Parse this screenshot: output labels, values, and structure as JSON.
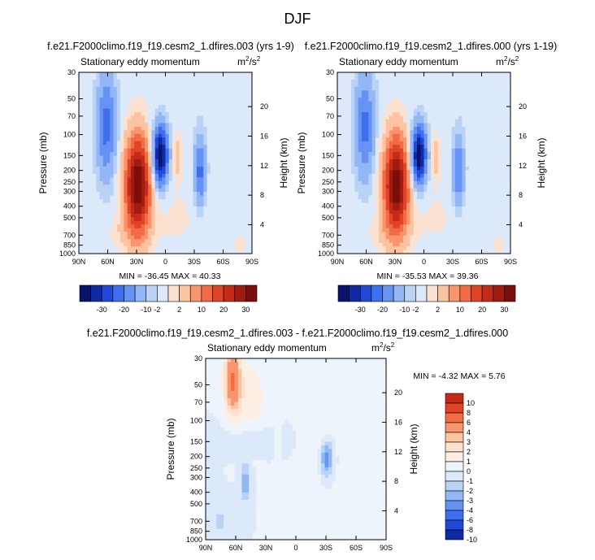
{
  "figure": {
    "title": "DJF"
  },
  "chart_data": [
    {
      "type": "heatmap",
      "id": "p1",
      "title": "f.e21.F2000climo.f19_f19.cesm2_1.dfires.003 (yrs 1-9)",
      "subtitle": "Stationary eddy momentum",
      "units": "m²/s²",
      "units_base": "m",
      "units_sup1": "2",
      "units_sep": "/s",
      "units_sup2": "2",
      "ylabel": "Pressure (mb)",
      "y2label": "Height (km)",
      "x_ticks": [
        "90N",
        "60N",
        "30N",
        "0",
        "30S",
        "60S",
        "90S"
      ],
      "x_values": [
        90,
        60,
        30,
        0,
        -30,
        -60,
        -90
      ],
      "y_ticks": [
        "30",
        "50",
        "70",
        "100",
        "150",
        "200",
        "250",
        "300",
        "400",
        "500",
        "700",
        "850",
        "1000"
      ],
      "y2_ticks": [
        "20",
        "16",
        "12",
        "8",
        "4"
      ],
      "min_max": "MIN = -36.45   MAX =  40.33",
      "colorbar_labels": [
        "-30",
        "-20",
        "-10",
        "-2",
        "2",
        "10",
        "20",
        "30"
      ],
      "levels": [
        -35,
        -30,
        -25,
        -20,
        -15,
        -10,
        -5,
        -2,
        2,
        5,
        10,
        15,
        20,
        25,
        30,
        35
      ]
    },
    {
      "type": "heatmap",
      "id": "p2",
      "title": "f.e21.F2000climo.f19_f19.cesm2_1.dfires.000 (yrs 1-19)",
      "subtitle": "Stationary eddy momentum",
      "units": "m²/s²",
      "units_base": "m",
      "units_sup1": "2",
      "units_sep": "/s",
      "units_sup2": "2",
      "ylabel": "Pressure (mb)",
      "y2label": "Height (km)",
      "x_ticks": [
        "90N",
        "60N",
        "30N",
        "0",
        "30S",
        "60S",
        "90S"
      ],
      "x_values": [
        90,
        60,
        30,
        0,
        -30,
        -60,
        -90
      ],
      "y_ticks": [
        "30",
        "50",
        "70",
        "100",
        "150",
        "200",
        "250",
        "300",
        "400",
        "500",
        "700",
        "850",
        "1000"
      ],
      "y2_ticks": [
        "20",
        "16",
        "12",
        "8",
        "4"
      ],
      "min_max": "MIN = -35.53   MAX =  39.36",
      "colorbar_labels": [
        "-30",
        "-20",
        "-10",
        "-2",
        "2",
        "10",
        "20",
        "30"
      ],
      "levels": [
        -35,
        -30,
        -25,
        -20,
        -15,
        -10,
        -5,
        -2,
        2,
        5,
        10,
        15,
        20,
        25,
        30,
        35
      ]
    },
    {
      "type": "heatmap",
      "id": "p3",
      "title": "f.e21.F2000climo.f19_f19.cesm2_1.dfires.003 - f.e21.F2000climo.f19_f19.cesm2_1.dfires.000",
      "subtitle": "Stationary eddy momentum",
      "units": "m²/s²",
      "units_base": "m",
      "units_sup1": "2",
      "units_sep": "/s",
      "units_sup2": "2",
      "ylabel": "Pressure (mb)",
      "y2label": "Height (km)",
      "x_ticks": [
        "90N",
        "60N",
        "30N",
        "0",
        "30S",
        "60S",
        "90S"
      ],
      "x_values": [
        90,
        60,
        30,
        0,
        -30,
        -60,
        -90
      ],
      "y_ticks": [
        "30",
        "50",
        "70",
        "100",
        "150",
        "200",
        "250",
        "300",
        "400",
        "500",
        "700",
        "850",
        "1000"
      ],
      "y2_ticks": [
        "20",
        "16",
        "12",
        "8",
        "4"
      ],
      "min_max": "MIN =  -4.32   MAX =   5.76",
      "colorbar_labels": [
        "10",
        "8",
        "6",
        "4",
        "3",
        "2",
        "1",
        "0",
        "-1",
        "-2",
        "-3",
        "-4",
        "-6",
        "-8",
        "-10"
      ],
      "levels": [
        -12,
        -10,
        -8,
        -6,
        -4,
        -3,
        -2,
        -1,
        0,
        1,
        2,
        3,
        4,
        6,
        8,
        10,
        12
      ]
    }
  ]
}
